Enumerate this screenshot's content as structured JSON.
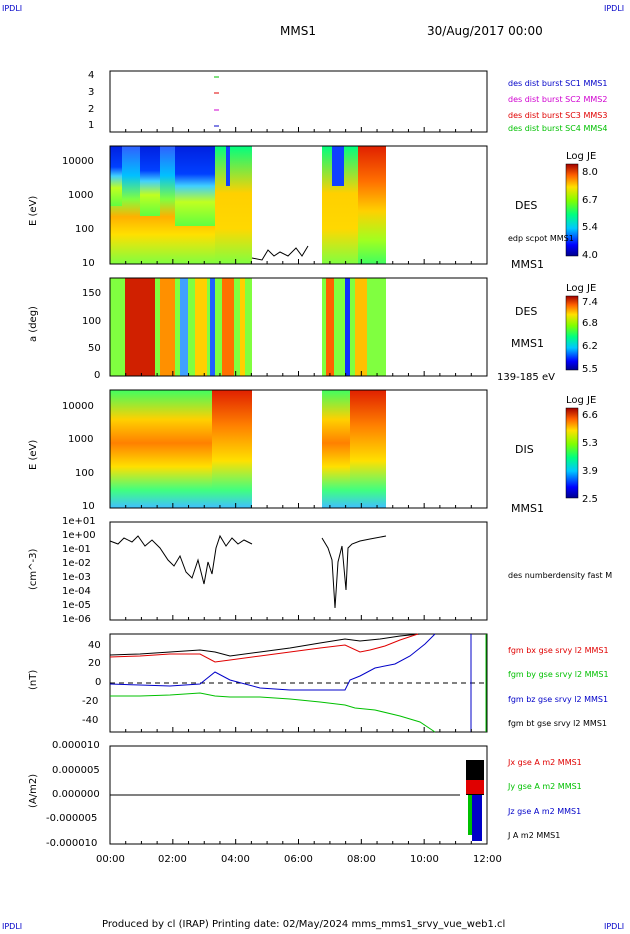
{
  "corners": {
    "tl": "IPDLI",
    "tr": "IPDLI",
    "bl": "IPDLI",
    "br": "IPDLI"
  },
  "header": {
    "spacecraft": "MMS1",
    "date": "30/Aug/2017 00:00"
  },
  "footer": "Produced by cl (IRAP)   Printing date: 02/May/2024   mms_mms1_srvy_vue_web1.cl",
  "xaxis": {
    "ticks": [
      "00:00",
      "02:00",
      "04:00",
      "06:00",
      "08:00",
      "10:00",
      "12:00"
    ]
  },
  "panel_sc": {
    "yticks": [
      "4",
      "3",
      "2",
      "1"
    ],
    "legend": [
      {
        "text": "des dist burst SC1 MMS1",
        "color": "#0000c8"
      },
      {
        "text": "des dist burst SC2 MMS2",
        "color": "#d000d0"
      },
      {
        "text": "des dist burst SC3 MMS3",
        "color": "#e00000"
      },
      {
        "text": "des dist burst SC4 MMS4",
        "color": "#00c000"
      }
    ]
  },
  "panel_des_e": {
    "ylabel": "E (eV)",
    "yticks": [
      "10000",
      "1000",
      "100",
      "10"
    ],
    "label": "DES",
    "sublabel": "edp scpot MMS1",
    "sc": "MMS1",
    "cb": {
      "title": "Log JE",
      "ticks": [
        "8.0",
        "6.7",
        "5.4",
        "4.0"
      ]
    }
  },
  "panel_des_pa": {
    "ylabel": "a (deg)",
    "yticks": [
      "150",
      "100",
      "50",
      "0"
    ],
    "label": "DES",
    "sc": "MMS1",
    "range": "139-185 eV",
    "cb": {
      "title": "Log JE",
      "ticks": [
        "7.4",
        "6.8",
        "6.2",
        "5.5"
      ]
    }
  },
  "panel_dis_e": {
    "ylabel": "E (eV)",
    "yticks": [
      "10000",
      "1000",
      "100",
      "10"
    ],
    "label": "DIS",
    "sc": "MMS1",
    "cb": {
      "title": "Log JE",
      "ticks": [
        "6.6",
        "5.3",
        "3.9",
        "2.5"
      ]
    }
  },
  "panel_n": {
    "ylabel": "(cm^-3)",
    "yticks": [
      "1e+01",
      "1e+00",
      "1e-01",
      "1e-02",
      "1e-03",
      "1e-04",
      "1e-05",
      "1e-06"
    ],
    "legend": "des numberdensity fast M"
  },
  "panel_b": {
    "ylabel": "(nT)",
    "yticks": [
      "40",
      "20",
      "0",
      "-20",
      "-40"
    ],
    "legend": [
      {
        "text": "fgm bx gse srvy l2 MMS1",
        "color": "#e00000"
      },
      {
        "text": "fgm by gse srvy l2 MMS1",
        "color": "#00c000"
      },
      {
        "text": "fgm bz gse srvy l2 MMS1",
        "color": "#0000c8"
      },
      {
        "text": "fgm bt gse srvy l2 MMS1",
        "color": "#000000"
      }
    ]
  },
  "panel_j": {
    "ylabel": "(A/m2)",
    "yticks": [
      "0.000010",
      "0.000005",
      "0.000000",
      "-0.000005",
      "-0.000010"
    ],
    "legend": [
      {
        "text": "Jx gse A m2 MMS1",
        "color": "#e00000"
      },
      {
        "text": "Jy gse A m2 MMS1",
        "color": "#00c000"
      },
      {
        "text": "Jz gse A m2 MMS1",
        "color": "#0000c8"
      },
      {
        "text": "J A m2 MMS1",
        "color": "#000000"
      }
    ]
  },
  "chart_data": [
    {
      "type": "line",
      "name": "sc burst indicator",
      "ylim": [
        0.5,
        4.5
      ],
      "x": [
        "03:20"
      ],
      "series": [
        {
          "name": "SC1",
          "values": [
            1
          ]
        },
        {
          "name": "SC2",
          "values": [
            2
          ]
        },
        {
          "name": "SC3",
          "values": [
            3
          ]
        },
        {
          "name": "SC4",
          "values": [
            4
          ]
        }
      ]
    },
    {
      "type": "heatmap",
      "ylabel": "E (eV)",
      "yscale": "log",
      "ylim": [
        10,
        30000
      ],
      "colorbar_range": [
        4.0,
        8.0
      ],
      "data_gaps": [
        [
          "04:30",
          "06:50"
        ],
        [
          "08:50",
          "12:00"
        ]
      ]
    },
    {
      "type": "heatmap",
      "ylabel": "a (deg)",
      "ylim": [
        0,
        180
      ],
      "colorbar_range": [
        5.5,
        7.4
      ],
      "energy_range": "139-185 eV"
    },
    {
      "type": "heatmap",
      "ylabel": "E (eV)",
      "yscale": "log",
      "ylim": [
        10,
        30000
      ],
      "colorbar_range": [
        2.5,
        6.6
      ]
    },
    {
      "type": "line",
      "ylabel": "(cm^-3)",
      "yscale": "log",
      "ylim": [
        1e-06,
        10
      ],
      "x": [
        "00:00",
        "01:00",
        "02:00",
        "03:00",
        "03:30",
        "04:00",
        "04:30",
        "06:50",
        "07:20",
        "07:35",
        "08:00",
        "08:40"
      ],
      "series": [
        {
          "name": "des numberdensity fast",
          "values": [
            1,
            0.8,
            0.3,
            0.01,
            0.003,
            0.5,
            0.6,
            0.8,
            2e-05,
            0.1,
            0.6,
            1
          ]
        }
      ]
    },
    {
      "type": "line",
      "ylabel": "(nT)",
      "ylim": [
        -50,
        50
      ],
      "x": [
        "00:00",
        "01:00",
        "02:00",
        "03:00",
        "04:00",
        "05:00",
        "06:00",
        "07:00",
        "08:00",
        "09:00",
        "10:00",
        "11:00",
        "12:00"
      ],
      "series": [
        {
          "name": "bx",
          "values": [
            27,
            28,
            30,
            29,
            28,
            31,
            34,
            37,
            40,
            38,
            46,
            null,
            null
          ]
        },
        {
          "name": "by",
          "values": [
            -14,
            -13,
            -12,
            -10,
            -9,
            -8,
            -12,
            -14,
            -20,
            -26,
            -33,
            -50,
            null
          ]
        },
        {
          "name": "bz",
          "values": [
            -1,
            0,
            -2,
            3,
            0,
            -4,
            -6,
            -6,
            -3,
            2,
            32,
            null,
            null
          ]
        },
        {
          "name": "bt",
          "values": [
            30,
            31,
            33,
            33,
            33,
            35,
            38,
            42,
            46,
            44,
            50,
            null,
            null
          ]
        }
      ]
    },
    {
      "type": "line",
      "ylabel": "(A/m2)",
      "ylim": [
        -1e-05,
        1e-05
      ],
      "x": [
        "00:00",
        "04:00",
        "08:00",
        "11:00",
        "11:30",
        "11:45",
        "12:00"
      ],
      "series": [
        {
          "name": "Jx",
          "values": [
            0,
            0,
            0,
            0,
            3e-06,
            -6e-06,
            0
          ]
        },
        {
          "name": "Jy",
          "values": [
            0,
            0,
            0,
            0,
            -2e-06,
            -8e-06,
            0
          ]
        },
        {
          "name": "Jz",
          "values": [
            0,
            0,
            0,
            0,
            -4e-06,
            -9e-06,
            0
          ]
        },
        {
          "name": "J",
          "values": [
            0,
            0,
            0,
            0,
            6e-06,
            1e-05,
            0
          ]
        }
      ]
    }
  ]
}
